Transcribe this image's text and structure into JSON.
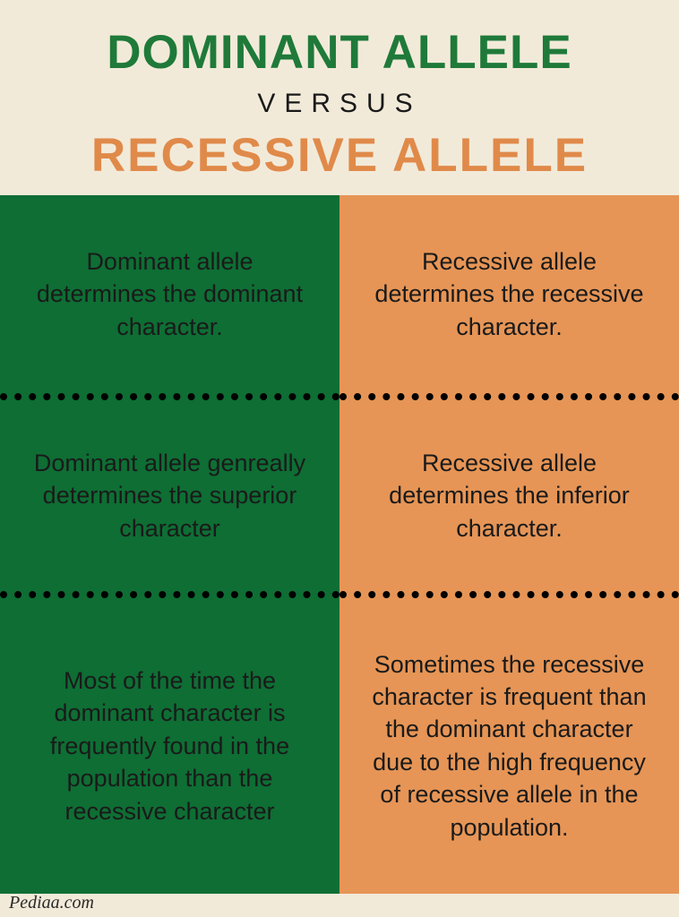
{
  "header": {
    "title1": "DOMINANT ALLELE",
    "title1_color": "#1f7a3a",
    "title1_fontsize": 53,
    "versus": "VERSUS",
    "versus_color": "#1a1a1a",
    "versus_fontsize": 30,
    "title2": "RECESSIVE ALLELE",
    "title2_color": "#e08a4a",
    "title2_fontsize": 53,
    "background": "#f2ead9"
  },
  "columns": {
    "left": {
      "background": "#0e6e34",
      "cells": [
        "Dominant allele determines the dominant character.",
        "Dominant allele genreally determines the superior character",
        "Most of the time the dominant character is frequently found in the population than the recessive character"
      ]
    },
    "right": {
      "background": "#e69556",
      "cells": [
        "Recessive allele determines the recessive character.",
        "Recessive allele determines the inferior character.",
        "Sometimes the recessive character is frequent than the dominant character due to the high frequency of recessive allele in the population."
      ]
    },
    "cell_fontsize": 27,
    "divider_width": 8
  },
  "footer": {
    "text": "Pediaa.com"
  }
}
